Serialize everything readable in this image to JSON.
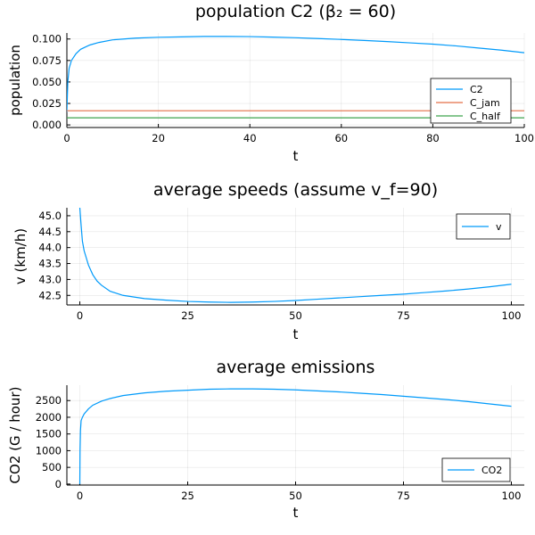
{
  "chart_data": [
    {
      "type": "line",
      "title": "population C2 (β₂ = 60)",
      "xlabel": "t",
      "ylabel": "population",
      "xlim": [
        0,
        100
      ],
      "ylim": [
        -0.003,
        0.107
      ],
      "xticks": [
        0,
        20,
        40,
        60,
        80,
        100
      ],
      "xtick_labels": [
        "0",
        "20",
        "40",
        "60",
        "80",
        "100"
      ],
      "yticks": [
        0,
        0.025,
        0.05,
        0.075,
        0.1
      ],
      "ytick_labels": [
        "0.000",
        "0.025",
        "0.050",
        "0.075",
        "0.100"
      ],
      "grid": true,
      "legend_position": "bottom-right",
      "series": [
        {
          "name": "C2",
          "color": "#009AFA",
          "points": [
            [
              0,
              0.015
            ],
            [
              0.2,
              0.05
            ],
            [
              0.5,
              0.066
            ],
            [
              1,
              0.075
            ],
            [
              2,
              0.083
            ],
            [
              3,
              0.088
            ],
            [
              5,
              0.093
            ],
            [
              7,
              0.096
            ],
            [
              10,
              0.099
            ],
            [
              15,
              0.101
            ],
            [
              20,
              0.102
            ],
            [
              25,
              0.1025
            ],
            [
              30,
              0.103
            ],
            [
              35,
              0.103
            ],
            [
              40,
              0.1028
            ],
            [
              45,
              0.1022
            ],
            [
              50,
              0.1015
            ],
            [
              55,
              0.1005
            ],
            [
              60,
              0.0995
            ],
            [
              65,
              0.0983
            ],
            [
              70,
              0.097
            ],
            [
              75,
              0.0955
            ],
            [
              80,
              0.094
            ],
            [
              85,
              0.092
            ],
            [
              90,
              0.0895
            ],
            [
              95,
              0.087
            ],
            [
              100,
              0.084
            ]
          ]
        },
        {
          "name": "C_jam",
          "color": "#E36F47",
          "points": [
            [
              0,
              0.0165
            ],
            [
              100,
              0.0165
            ]
          ]
        },
        {
          "name": "C_half",
          "color": "#3EA44E",
          "points": [
            [
              0,
              0.0083
            ],
            [
              100,
              0.0083
            ]
          ]
        }
      ]
    },
    {
      "type": "line",
      "title": "average speeds (assume v_f=90)",
      "xlabel": "t",
      "ylabel": "v (km/h)",
      "xlim": [
        -3,
        103
      ],
      "ylim": [
        42.2,
        45.25
      ],
      "xticks": [
        0,
        25,
        50,
        75,
        100
      ],
      "xtick_labels": [
        "0",
        "25",
        "50",
        "75",
        "100"
      ],
      "yticks": [
        42.5,
        43.0,
        43.5,
        44.0,
        44.5,
        45.0
      ],
      "ytick_labels": [
        "42.5",
        "43.0",
        "43.5",
        "44.0",
        "44.5",
        "45.0"
      ],
      "grid": true,
      "legend_position": "top-right",
      "series": [
        {
          "name": "v",
          "color": "#009AFA",
          "points": [
            [
              0,
              45.25
            ],
            [
              0.3,
              44.7
            ],
            [
              0.6,
              44.2
            ],
            [
              1,
              43.9
            ],
            [
              2,
              43.45
            ],
            [
              3,
              43.15
            ],
            [
              4,
              42.95
            ],
            [
              5,
              42.82
            ],
            [
              7,
              42.63
            ],
            [
              10,
              42.5
            ],
            [
              15,
              42.4
            ],
            [
              20,
              42.35
            ],
            [
              25,
              42.31
            ],
            [
              30,
              42.29
            ],
            [
              35,
              42.28
            ],
            [
              40,
              42.29
            ],
            [
              45,
              42.31
            ],
            [
              50,
              42.34
            ],
            [
              55,
              42.38
            ],
            [
              60,
              42.42
            ],
            [
              65,
              42.46
            ],
            [
              70,
              42.5
            ],
            [
              75,
              42.54
            ],
            [
              80,
              42.59
            ],
            [
              85,
              42.64
            ],
            [
              90,
              42.7
            ],
            [
              95,
              42.77
            ],
            [
              100,
              42.85
            ]
          ]
        }
      ]
    },
    {
      "type": "line",
      "title": "average emissions",
      "xlabel": "t",
      "ylabel": "CO2 (G / hour)",
      "xlim": [
        -3,
        103
      ],
      "ylim": [
        -30,
        2960
      ],
      "xticks": [
        0,
        25,
        50,
        75,
        100
      ],
      "xtick_labels": [
        "0",
        "25",
        "50",
        "75",
        "100"
      ],
      "yticks": [
        0,
        500,
        1000,
        1500,
        2000,
        2500
      ],
      "ytick_labels": [
        "0",
        "500",
        "1000",
        "1500",
        "2000",
        "2500"
      ],
      "grid": true,
      "legend_position": "bottom-right",
      "series": [
        {
          "name": "CO2",
          "color": "#009AFA",
          "points": [
            [
              0,
              0
            ],
            [
              0.05,
              1000
            ],
            [
              0.15,
              1600
            ],
            [
              0.3,
              1900
            ],
            [
              0.6,
              2000
            ],
            [
              1,
              2100
            ],
            [
              2,
              2250
            ],
            [
              3,
              2360
            ],
            [
              5,
              2480
            ],
            [
              7,
              2560
            ],
            [
              10,
              2650
            ],
            [
              15,
              2730
            ],
            [
              20,
              2780
            ],
            [
              25,
              2810
            ],
            [
              30,
              2840
            ],
            [
              35,
              2850
            ],
            [
              40,
              2850
            ],
            [
              45,
              2840
            ],
            [
              50,
              2820
            ],
            [
              55,
              2790
            ],
            [
              60,
              2760
            ],
            [
              65,
              2720
            ],
            [
              70,
              2680
            ],
            [
              75,
              2630
            ],
            [
              80,
              2580
            ],
            [
              85,
              2530
            ],
            [
              90,
              2470
            ],
            [
              95,
              2400
            ],
            [
              100,
              2330
            ]
          ]
        }
      ]
    }
  ]
}
